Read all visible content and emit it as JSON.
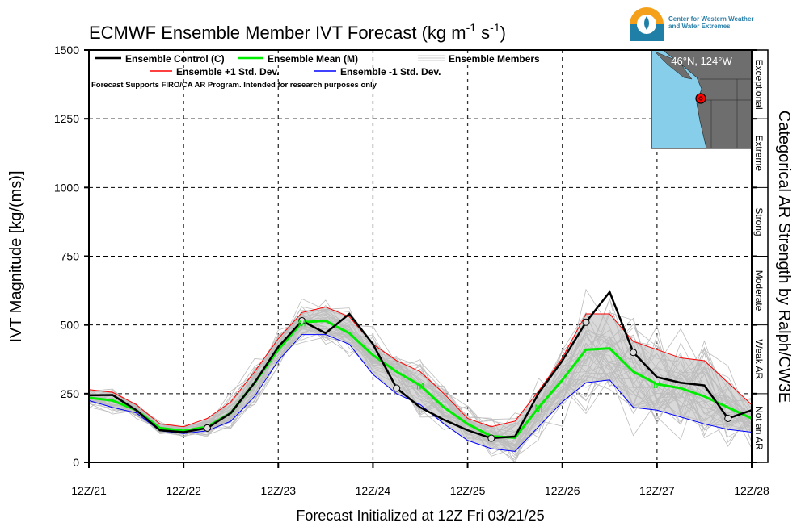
{
  "header": {
    "title": "ECMWF Ensemble Member IVT Forecast (kg m",
    "title_sup1": "-1",
    "title_mid": " s",
    "title_sup2": "-1",
    "title_end": ")",
    "logo_text_line1": "Center for Western Weather",
    "logo_text_line2": "and Water Extremes"
  },
  "legend": {
    "control": "Ensemble Control (C)",
    "mean": "Ensemble Mean (M)",
    "members": "Ensemble Members",
    "plus_sd": "Ensemble +1 Std. Dev.",
    "minus_sd": "Ensemble -1 Std. Dev.",
    "note": "Forecast Supports FIRO/CA AR Program. Intended for research purposes only"
  },
  "inset_map": {
    "location_label": "46°N, 124°W"
  },
  "categories": {
    "title": "Categorical AR Strength by Ralph/CW3E",
    "bands": [
      "Not an AR",
      "Weak AR",
      "Moderate",
      "Strong",
      "Extreme",
      "Exceptional"
    ]
  },
  "colors": {
    "control": "#000000",
    "mean": "#00ee00",
    "plus_sd": "#ff0000",
    "minus_sd": "#0000ff",
    "members": "#bdbdbd",
    "band": "#d9d9d9"
  },
  "chart_data": {
    "type": "line",
    "title": "ECMWF Ensemble Member IVT Forecast (kg m-1 s-1)",
    "xlabel": "Forecast Initialized at 12Z Fri 03/21/25",
    "ylabel": "IVT Magnitude [kg/(ms)]",
    "ylim": [
      0,
      1500
    ],
    "yticks": [
      "0",
      "250",
      "500",
      "750",
      "1000",
      "1250",
      "1500"
    ],
    "xtick_labels": [
      "12Z/21",
      "12Z/22",
      "12Z/23",
      "12Z/24",
      "12Z/25",
      "12Z/26",
      "12Z/27",
      "12Z/28"
    ],
    "x_step": "6-hourly from 12Z/21 to 12Z/28",
    "grid": true,
    "legend_position": "top-left",
    "series": [
      {
        "name": "Ensemble Control (C)",
        "key": "control",
        "values": [
          244,
          245,
          190,
          117,
          110,
          125,
          180,
          290,
          420,
          515,
          470,
          540,
          430,
          270,
          200,
          155,
          117,
          88,
          94,
          252,
          370,
          510,
          620,
          400,
          310,
          290,
          280,
          160,
          190
        ]
      },
      {
        "name": "Ensemble Mean (M)",
        "key": "mean",
        "values": [
          235,
          225,
          190,
          125,
          115,
          130,
          180,
          290,
          410,
          510,
          515,
          470,
          390,
          330,
          280,
          200,
          140,
          95,
          90,
          200,
          300,
          410,
          415,
          330,
          285,
          270,
          240,
          200,
          160
        ]
      },
      {
        "name": "Ensemble +1 Std. Dev.",
        "key": "plus_sd",
        "values": [
          265,
          255,
          210,
          140,
          130,
          160,
          220,
          330,
          450,
          545,
          565,
          530,
          430,
          370,
          330,
          250,
          160,
          130,
          150,
          260,
          380,
          540,
          540,
          440,
          410,
          380,
          370,
          290,
          210
        ]
      },
      {
        "name": "Ensemble -1 Std. Dev.",
        "key": "minus_sd",
        "values": [
          225,
          200,
          180,
          115,
          105,
          115,
          150,
          240,
          370,
          465,
          465,
          430,
          320,
          250,
          210,
          140,
          80,
          50,
          40,
          130,
          220,
          290,
          300,
          200,
          190,
          165,
          140,
          120,
          110
        ]
      }
    ]
  }
}
